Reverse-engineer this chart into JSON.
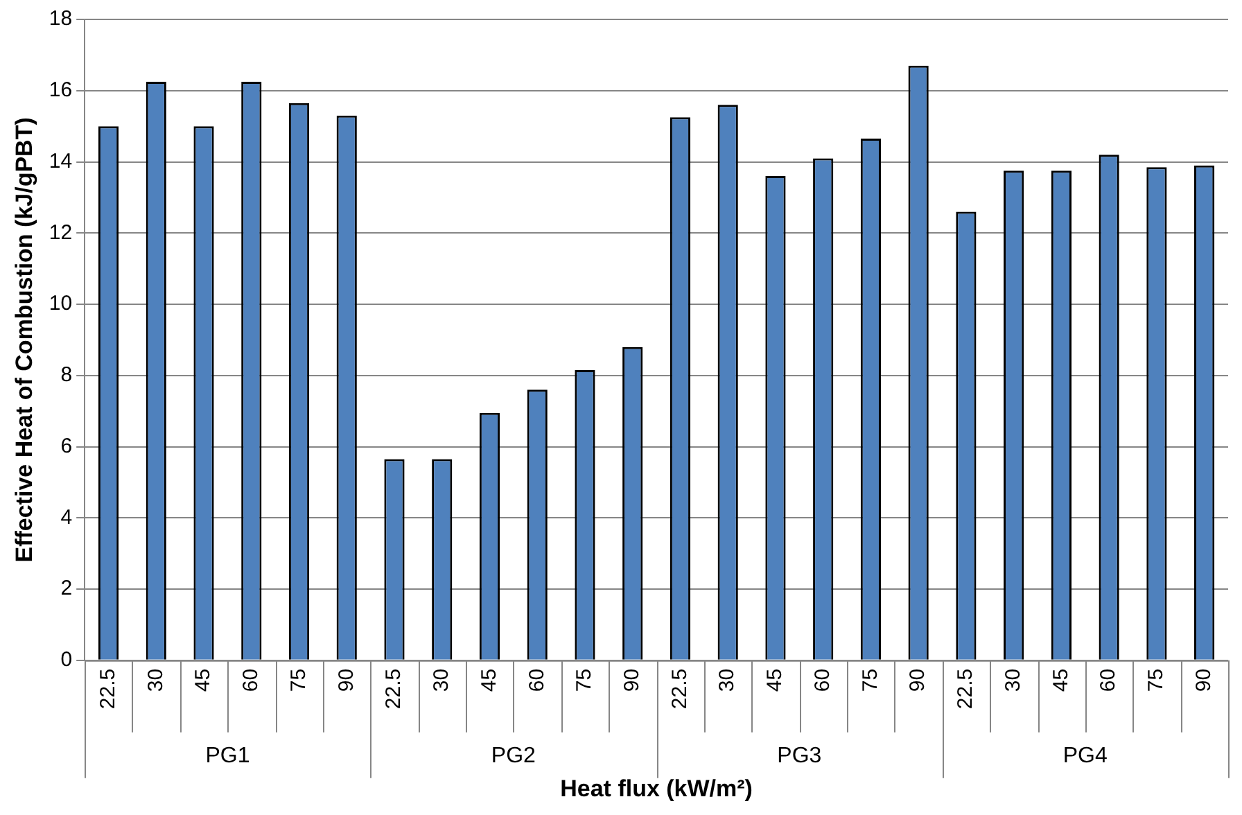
{
  "chart_data": {
    "type": "bar",
    "categories": [
      "22.5",
      "30",
      "45",
      "60",
      "75",
      "90",
      "22.5",
      "30",
      "45",
      "60",
      "75",
      "90",
      "22.5",
      "30",
      "45",
      "60",
      "75",
      "90",
      "22.5",
      "30",
      "45",
      "60",
      "75",
      "90"
    ],
    "values": [
      15.0,
      16.25,
      15.0,
      16.25,
      15.65,
      15.3,
      5.65,
      5.65,
      6.95,
      7.6,
      8.15,
      8.8,
      15.25,
      15.6,
      13.6,
      14.1,
      14.65,
      16.7,
      12.6,
      13.75,
      13.75,
      14.2,
      13.85,
      13.9
    ],
    "color": "#4f81bd",
    "xlabel": "Heat flux (kW/m²)",
    "ylabel": "Effective Heat of Combustion (kJ/gPBT)",
    "annotations": [
      "PG1",
      "PG2",
      "PG3",
      "PG4"
    ],
    "ylim": [
      0,
      18
    ],
    "yticks": [
      0,
      2,
      4,
      6,
      8,
      10,
      12,
      14,
      16,
      18
    ],
    "grid": "y",
    "legend": false
  }
}
